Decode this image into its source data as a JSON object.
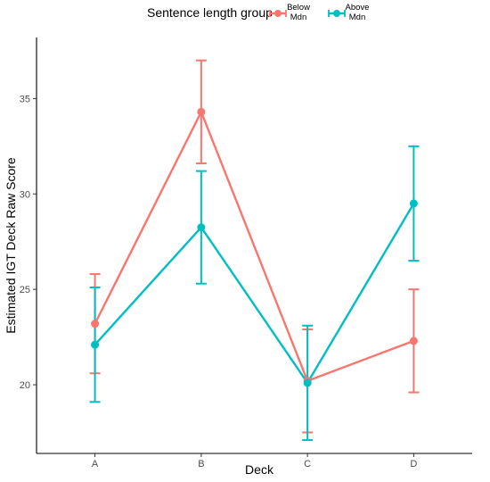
{
  "chart_data": {
    "type": "line",
    "title": "",
    "xlabel": "Deck",
    "ylabel": "Estimated IGT Deck Raw Score",
    "categories": [
      "A",
      "B",
      "C",
      "D"
    ],
    "yticks": [
      20,
      25,
      30,
      35
    ],
    "ylim": [
      16.4,
      38.2
    ],
    "grid": false,
    "legend": {
      "title": "Sentence length group",
      "placement": "top",
      "entries": [
        {
          "line1": "Below",
          "line2": "Mdn"
        },
        {
          "line1": "Above",
          "line2": "Mdn"
        }
      ]
    },
    "series": [
      {
        "color": "#F8766D",
        "values": [
          23.2,
          34.3,
          20.2,
          22.3
        ],
        "lower": [
          20.6,
          31.6,
          17.5,
          19.6
        ],
        "upper": [
          25.8,
          37.0,
          22.9,
          25.0
        ]
      },
      {
        "color": "#00BFC4",
        "values": [
          22.1,
          28.25,
          20.1,
          29.5
        ],
        "lower": [
          19.1,
          25.3,
          17.1,
          26.5
        ],
        "upper": [
          25.1,
          31.2,
          23.1,
          32.5
        ]
      }
    ]
  }
}
